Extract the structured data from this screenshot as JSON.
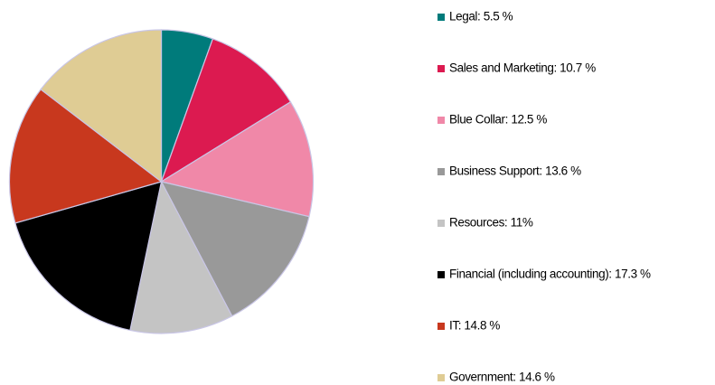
{
  "chart_data": {
    "type": "pie",
    "categories": [
      "Legal: 5.5 %",
      "Sales and Marketing: 10.7 %",
      "Blue Collar: 12.5 %",
      "Business Support: 13.6 %",
      "Resources: 11%",
      "Financial (including accounting): 17.3 %",
      "IT: 14.8 %",
      "Government: 14.6 %"
    ],
    "values": [
      5.5,
      10.7,
      12.5,
      13.6,
      11,
      17.3,
      14.8,
      14.6
    ],
    "colors": [
      "#007b7b",
      "#dc1a50",
      "#f088a8",
      "#999999",
      "#c4c4c4",
      "#000000",
      "#c8381e",
      "#dfcc94"
    ],
    "legend": "right"
  }
}
